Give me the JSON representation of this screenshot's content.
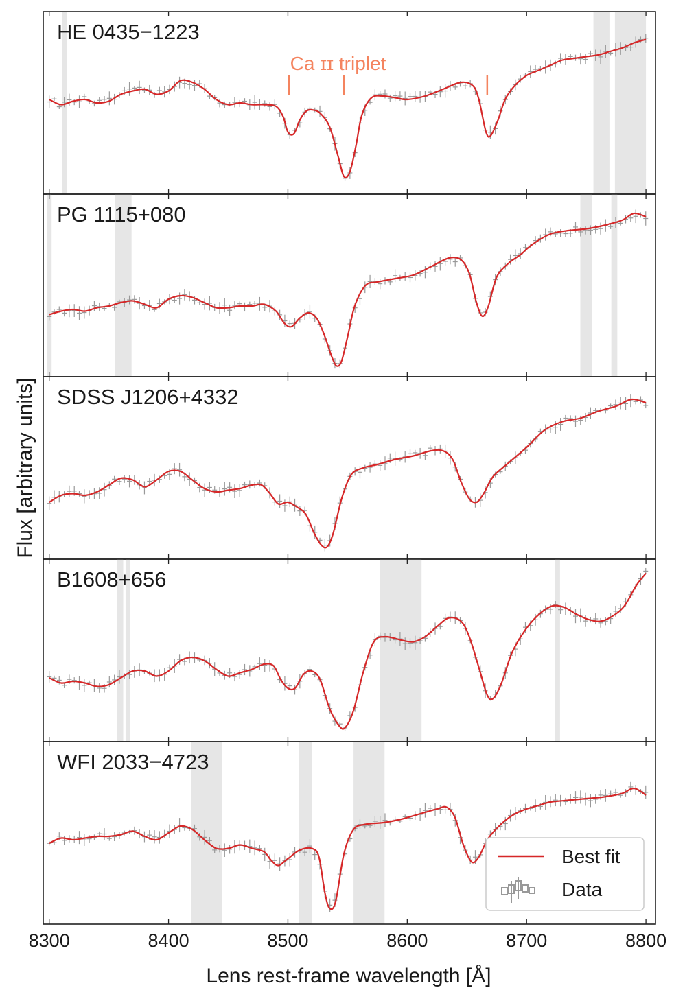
{
  "chart_data": {
    "type": "line",
    "xlabel": "Lens rest-frame wavelength [Å]",
    "ylabel": "Flux [arbitrary units]",
    "xlim": [
      8295,
      8808
    ],
    "xticks": [
      8300,
      8400,
      8500,
      8600,
      8700,
      8800
    ],
    "shared_x": true,
    "legend": {
      "placement": "lower-right of bottom panel",
      "entries": [
        {
          "label": "Best fit",
          "color": "#d62728",
          "marker": "line"
        },
        {
          "label": "Data",
          "color": "#999999",
          "marker": "errorbar"
        }
      ]
    },
    "annotation": {
      "text": "Ca ɪɪ triplet",
      "color": "#f4845f",
      "lines_x": [
        8501,
        8547,
        8667
      ],
      "panel": 0
    },
    "colors": {
      "fit": "#d62728",
      "data": "#999999",
      "mask": "#e6e6e6",
      "annotation": "#f4845f"
    },
    "panels": [
      {
        "label": "HE 0435−1223",
        "masks": [
          [
            8311,
            8315
          ],
          [
            8756,
            8770
          ],
          [
            8774,
            8800
          ]
        ],
        "ylim": [
          0,
          1
        ],
        "fit": [
          [
            8300,
            0.52
          ],
          [
            8310,
            0.49
          ],
          [
            8320,
            0.51
          ],
          [
            8330,
            0.52
          ],
          [
            8340,
            0.5
          ],
          [
            8350,
            0.51
          ],
          [
            8360,
            0.55
          ],
          [
            8370,
            0.57
          ],
          [
            8380,
            0.58
          ],
          [
            8390,
            0.55
          ],
          [
            8400,
            0.57
          ],
          [
            8410,
            0.63
          ],
          [
            8420,
            0.62
          ],
          [
            8430,
            0.58
          ],
          [
            8440,
            0.52
          ],
          [
            8450,
            0.49
          ],
          [
            8460,
            0.5
          ],
          [
            8470,
            0.49
          ],
          [
            8480,
            0.49
          ],
          [
            8490,
            0.48
          ],
          [
            8496,
            0.42
          ],
          [
            8500,
            0.33
          ],
          [
            8505,
            0.32
          ],
          [
            8510,
            0.4
          ],
          [
            8515,
            0.45
          ],
          [
            8520,
            0.46
          ],
          [
            8527,
            0.44
          ],
          [
            8535,
            0.36
          ],
          [
            8542,
            0.19
          ],
          [
            8547,
            0.07
          ],
          [
            8552,
            0.1
          ],
          [
            8557,
            0.25
          ],
          [
            8562,
            0.43
          ],
          [
            8570,
            0.53
          ],
          [
            8580,
            0.54
          ],
          [
            8590,
            0.53
          ],
          [
            8600,
            0.52
          ],
          [
            8615,
            0.54
          ],
          [
            8630,
            0.58
          ],
          [
            8645,
            0.62
          ],
          [
            8655,
            0.6
          ],
          [
            8660,
            0.52
          ],
          [
            8666,
            0.33
          ],
          [
            8670,
            0.31
          ],
          [
            8676,
            0.4
          ],
          [
            8682,
            0.52
          ],
          [
            8690,
            0.6
          ],
          [
            8700,
            0.66
          ],
          [
            8710,
            0.69
          ],
          [
            8720,
            0.72
          ],
          [
            8730,
            0.75
          ],
          [
            8740,
            0.76
          ],
          [
            8750,
            0.77
          ],
          [
            8760,
            0.78
          ],
          [
            8770,
            0.8
          ],
          [
            8780,
            0.82
          ],
          [
            8790,
            0.85
          ],
          [
            8800,
            0.87
          ]
        ]
      },
      {
        "label": "PG 1115+080",
        "masks": [
          [
            8298,
            8302
          ],
          [
            8355,
            8369
          ],
          [
            8745,
            8755
          ],
          [
            8771,
            8776
          ]
        ],
        "ylim": [
          0,
          1
        ],
        "fit": [
          [
            8300,
            0.33
          ],
          [
            8310,
            0.35
          ],
          [
            8320,
            0.36
          ],
          [
            8330,
            0.35
          ],
          [
            8340,
            0.37
          ],
          [
            8350,
            0.38
          ],
          [
            8360,
            0.4
          ],
          [
            8370,
            0.41
          ],
          [
            8380,
            0.39
          ],
          [
            8390,
            0.37
          ],
          [
            8400,
            0.42
          ],
          [
            8410,
            0.44
          ],
          [
            8420,
            0.43
          ],
          [
            8430,
            0.4
          ],
          [
            8440,
            0.37
          ],
          [
            8450,
            0.37
          ],
          [
            8460,
            0.38
          ],
          [
            8470,
            0.38
          ],
          [
            8480,
            0.39
          ],
          [
            8490,
            0.35
          ],
          [
            8497,
            0.28
          ],
          [
            8503,
            0.26
          ],
          [
            8510,
            0.31
          ],
          [
            8517,
            0.34
          ],
          [
            8524,
            0.31
          ],
          [
            8530,
            0.22
          ],
          [
            8537,
            0.08
          ],
          [
            8541,
            0.03
          ],
          [
            8545,
            0.06
          ],
          [
            8550,
            0.2
          ],
          [
            8556,
            0.38
          ],
          [
            8565,
            0.5
          ],
          [
            8575,
            0.52
          ],
          [
            8590,
            0.54
          ],
          [
            8605,
            0.56
          ],
          [
            8620,
            0.61
          ],
          [
            8635,
            0.66
          ],
          [
            8645,
            0.65
          ],
          [
            8652,
            0.57
          ],
          [
            8658,
            0.4
          ],
          [
            8663,
            0.32
          ],
          [
            8668,
            0.38
          ],
          [
            8675,
            0.55
          ],
          [
            8685,
            0.63
          ],
          [
            8695,
            0.68
          ],
          [
            8705,
            0.74
          ],
          [
            8720,
            0.8
          ],
          [
            8735,
            0.82
          ],
          [
            8750,
            0.83
          ],
          [
            8765,
            0.85
          ],
          [
            8780,
            0.88
          ],
          [
            8790,
            0.92
          ],
          [
            8800,
            0.9
          ]
        ]
      },
      {
        "label": "SDSS J1206+4332",
        "masks": [],
        "ylim": [
          0,
          1
        ],
        "fit": [
          [
            8300,
            0.3
          ],
          [
            8310,
            0.34
          ],
          [
            8320,
            0.35
          ],
          [
            8330,
            0.34
          ],
          [
            8340,
            0.36
          ],
          [
            8350,
            0.4
          ],
          [
            8360,
            0.44
          ],
          [
            8370,
            0.43
          ],
          [
            8380,
            0.39
          ],
          [
            8390,
            0.43
          ],
          [
            8400,
            0.48
          ],
          [
            8410,
            0.48
          ],
          [
            8420,
            0.43
          ],
          [
            8430,
            0.38
          ],
          [
            8440,
            0.36
          ],
          [
            8450,
            0.37
          ],
          [
            8460,
            0.38
          ],
          [
            8470,
            0.4
          ],
          [
            8478,
            0.4
          ],
          [
            8485,
            0.35
          ],
          [
            8492,
            0.29
          ],
          [
            8500,
            0.3
          ],
          [
            8508,
            0.27
          ],
          [
            8515,
            0.23
          ],
          [
            8522,
            0.12
          ],
          [
            8528,
            0.05
          ],
          [
            8533,
            0.04
          ],
          [
            8538,
            0.12
          ],
          [
            8545,
            0.32
          ],
          [
            8553,
            0.46
          ],
          [
            8563,
            0.5
          ],
          [
            8575,
            0.52
          ],
          [
            8590,
            0.55
          ],
          [
            8605,
            0.57
          ],
          [
            8620,
            0.6
          ],
          [
            8630,
            0.6
          ],
          [
            8638,
            0.55
          ],
          [
            8645,
            0.42
          ],
          [
            8652,
            0.32
          ],
          [
            8658,
            0.3
          ],
          [
            8664,
            0.35
          ],
          [
            8672,
            0.45
          ],
          [
            8685,
            0.53
          ],
          [
            8700,
            0.62
          ],
          [
            8715,
            0.72
          ],
          [
            8730,
            0.77
          ],
          [
            8745,
            0.79
          ],
          [
            8760,
            0.83
          ],
          [
            8775,
            0.86
          ],
          [
            8788,
            0.9
          ],
          [
            8800,
            0.88
          ]
        ]
      },
      {
        "label": "B1608+656",
        "masks": [
          [
            8357,
            8362
          ],
          [
            8364,
            8368
          ],
          [
            8577,
            8612
          ],
          [
            8724,
            8728
          ]
        ],
        "ylim": [
          0,
          1
        ],
        "fit": [
          [
            8300,
            0.34
          ],
          [
            8310,
            0.31
          ],
          [
            8320,
            0.32
          ],
          [
            8330,
            0.31
          ],
          [
            8340,
            0.29
          ],
          [
            8350,
            0.3
          ],
          [
            8360,
            0.34
          ],
          [
            8370,
            0.38
          ],
          [
            8380,
            0.38
          ],
          [
            8390,
            0.35
          ],
          [
            8400,
            0.38
          ],
          [
            8410,
            0.44
          ],
          [
            8420,
            0.46
          ],
          [
            8430,
            0.44
          ],
          [
            8440,
            0.39
          ],
          [
            8450,
            0.35
          ],
          [
            8460,
            0.37
          ],
          [
            8470,
            0.39
          ],
          [
            8480,
            0.42
          ],
          [
            8488,
            0.41
          ],
          [
            8494,
            0.33
          ],
          [
            8500,
            0.28
          ],
          [
            8506,
            0.28
          ],
          [
            8513,
            0.36
          ],
          [
            8520,
            0.38
          ],
          [
            8527,
            0.33
          ],
          [
            8535,
            0.16
          ],
          [
            8543,
            0.06
          ],
          [
            8548,
            0.05
          ],
          [
            8555,
            0.15
          ],
          [
            8563,
            0.37
          ],
          [
            8572,
            0.55
          ],
          [
            8582,
            0.58
          ],
          [
            8595,
            0.56
          ],
          [
            8605,
            0.55
          ],
          [
            8615,
            0.58
          ],
          [
            8625,
            0.64
          ],
          [
            8635,
            0.69
          ],
          [
            8645,
            0.67
          ],
          [
            8652,
            0.58
          ],
          [
            8660,
            0.4
          ],
          [
            8667,
            0.24
          ],
          [
            8672,
            0.22
          ],
          [
            8679,
            0.31
          ],
          [
            8688,
            0.49
          ],
          [
            8700,
            0.63
          ],
          [
            8712,
            0.72
          ],
          [
            8722,
            0.76
          ],
          [
            8732,
            0.75
          ],
          [
            8742,
            0.71
          ],
          [
            8752,
            0.68
          ],
          [
            8762,
            0.67
          ],
          [
            8772,
            0.7
          ],
          [
            8782,
            0.76
          ],
          [
            8792,
            0.88
          ],
          [
            8800,
            0.95
          ]
        ]
      },
      {
        "label": "WFI 2033−4723",
        "masks": [
          [
            8419,
            8445
          ],
          [
            8509,
            8520
          ],
          [
            8555,
            8581
          ]
        ],
        "ylim": [
          0,
          1
        ],
        "fit": [
          [
            8300,
            0.44
          ],
          [
            8310,
            0.47
          ],
          [
            8320,
            0.46
          ],
          [
            8330,
            0.47
          ],
          [
            8340,
            0.48
          ],
          [
            8350,
            0.48
          ],
          [
            8360,
            0.49
          ],
          [
            8370,
            0.51
          ],
          [
            8380,
            0.48
          ],
          [
            8390,
            0.46
          ],
          [
            8400,
            0.5
          ],
          [
            8410,
            0.54
          ],
          [
            8420,
            0.52
          ],
          [
            8430,
            0.46
          ],
          [
            8440,
            0.41
          ],
          [
            8450,
            0.41
          ],
          [
            8460,
            0.43
          ],
          [
            8470,
            0.41
          ],
          [
            8480,
            0.39
          ],
          [
            8486,
            0.34
          ],
          [
            8492,
            0.31
          ],
          [
            8500,
            0.35
          ],
          [
            8510,
            0.4
          ],
          [
            8520,
            0.41
          ],
          [
            8526,
            0.36
          ],
          [
            8531,
            0.15
          ],
          [
            8535,
            0.06
          ],
          [
            8540,
            0.1
          ],
          [
            8547,
            0.38
          ],
          [
            8555,
            0.52
          ],
          [
            8565,
            0.55
          ],
          [
            8580,
            0.56
          ],
          [
            8595,
            0.58
          ],
          [
            8610,
            0.61
          ],
          [
            8625,
            0.64
          ],
          [
            8633,
            0.65
          ],
          [
            8640,
            0.59
          ],
          [
            8647,
            0.43
          ],
          [
            8654,
            0.33
          ],
          [
            8660,
            0.36
          ],
          [
            8668,
            0.47
          ],
          [
            8680,
            0.56
          ],
          [
            8690,
            0.61
          ],
          [
            8700,
            0.64
          ],
          [
            8710,
            0.66
          ],
          [
            8720,
            0.68
          ],
          [
            8735,
            0.69
          ],
          [
            8750,
            0.7
          ],
          [
            8765,
            0.71
          ],
          [
            8780,
            0.73
          ],
          [
            8790,
            0.76
          ],
          [
            8800,
            0.72
          ]
        ]
      }
    ]
  }
}
